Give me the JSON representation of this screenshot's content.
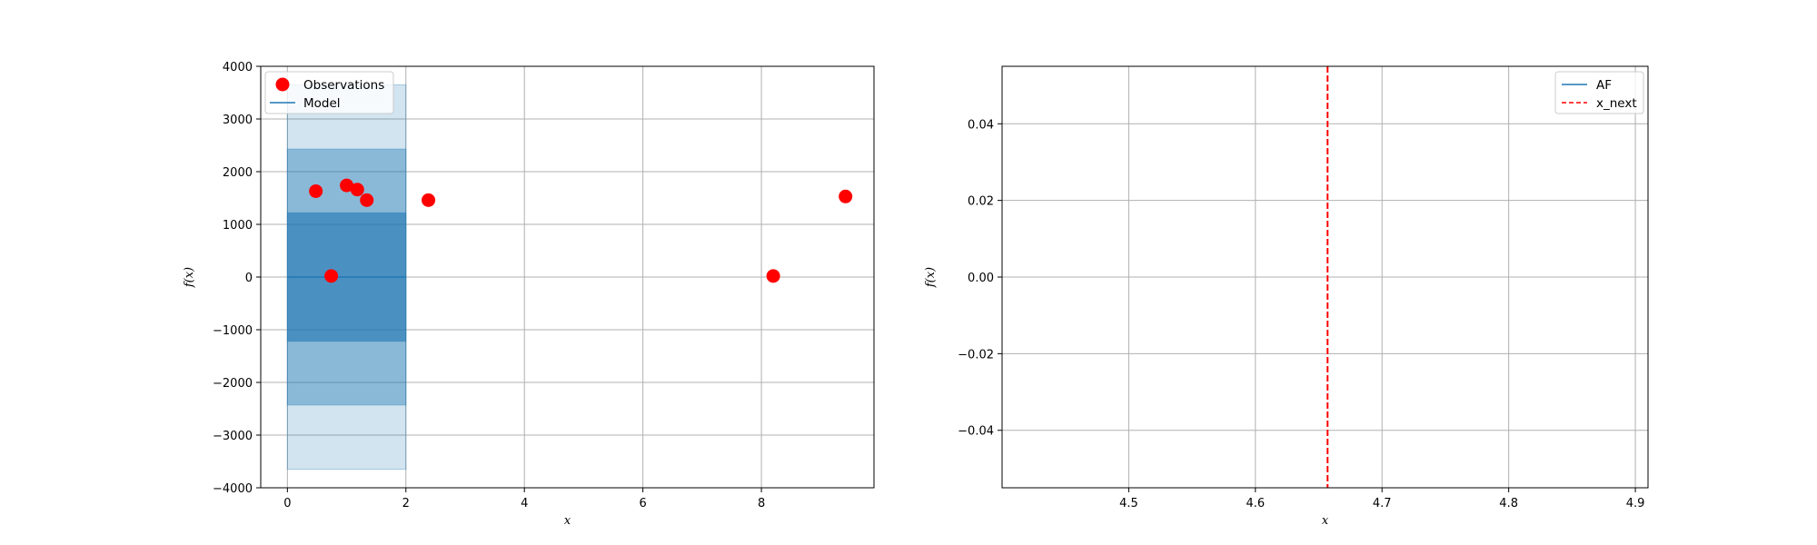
{
  "chart_data": [
    {
      "type": "scatter",
      "xlabel": "x",
      "ylabel": "f(x)",
      "xlim": [
        -0.45,
        9.9
      ],
      "ylim": [
        -4000,
        4000
      ],
      "xticks": [
        0,
        2,
        4,
        6,
        8
      ],
      "yticks": [
        -4000,
        -3000,
        -2000,
        -1000,
        0,
        1000,
        2000,
        3000,
        4000
      ],
      "x_tick_labels": [
        "0",
        "2",
        "4",
        "6",
        "8"
      ],
      "y_tick_labels": [
        "−4000",
        "−3000",
        "−2000",
        "−1000",
        "0",
        "1000",
        "2000",
        "3000",
        "4000"
      ],
      "grid": true,
      "legend_position": "upper-left",
      "series": [
        {
          "name": "Observations",
          "kind": "points",
          "color": "#ff0000",
          "x": [
            0.48,
            0.74,
            1.0,
            1.18,
            1.34,
            2.38,
            8.2,
            9.42
          ],
          "y": [
            1630,
            20,
            1740,
            1660,
            1460,
            1460,
            20,
            1530
          ]
        },
        {
          "name": "Model",
          "kind": "line",
          "color": "#1f77b4",
          "x": [
            0,
            2
          ],
          "y": [
            0,
            0
          ]
        }
      ],
      "confidence_bands": {
        "x_range": [
          0,
          2
        ],
        "color": "#1f77b4",
        "bands": [
          {
            "lower": -3650,
            "upper": 3650,
            "opacity": 0.2
          },
          {
            "lower": -2430,
            "upper": 2430,
            "opacity": 0.4
          },
          {
            "lower": -1220,
            "upper": 1220,
            "opacity": 0.6
          }
        ]
      }
    },
    {
      "type": "line",
      "xlabel": "x",
      "ylabel": "f(x)",
      "xlim": [
        4.4,
        4.91
      ],
      "ylim": [
        -0.055,
        0.055
      ],
      "xticks": [
        4.5,
        4.6,
        4.7,
        4.8,
        4.9
      ],
      "yticks": [
        -0.04,
        -0.02,
        0.0,
        0.02,
        0.04
      ],
      "x_tick_labels": [
        "4.5",
        "4.6",
        "4.7",
        "4.8",
        "4.9"
      ],
      "y_tick_labels": [
        "−0.04",
        "−0.02",
        "0.00",
        "0.02",
        "0.04"
      ],
      "grid": true,
      "legend_position": "upper-right",
      "series": [
        {
          "name": "AF",
          "kind": "line",
          "color": "#1f77b4",
          "x": [],
          "y": []
        },
        {
          "name": "x_next",
          "kind": "vline",
          "color": "#ff0000",
          "style": "dashed",
          "x": 4.657
        }
      ]
    }
  ]
}
